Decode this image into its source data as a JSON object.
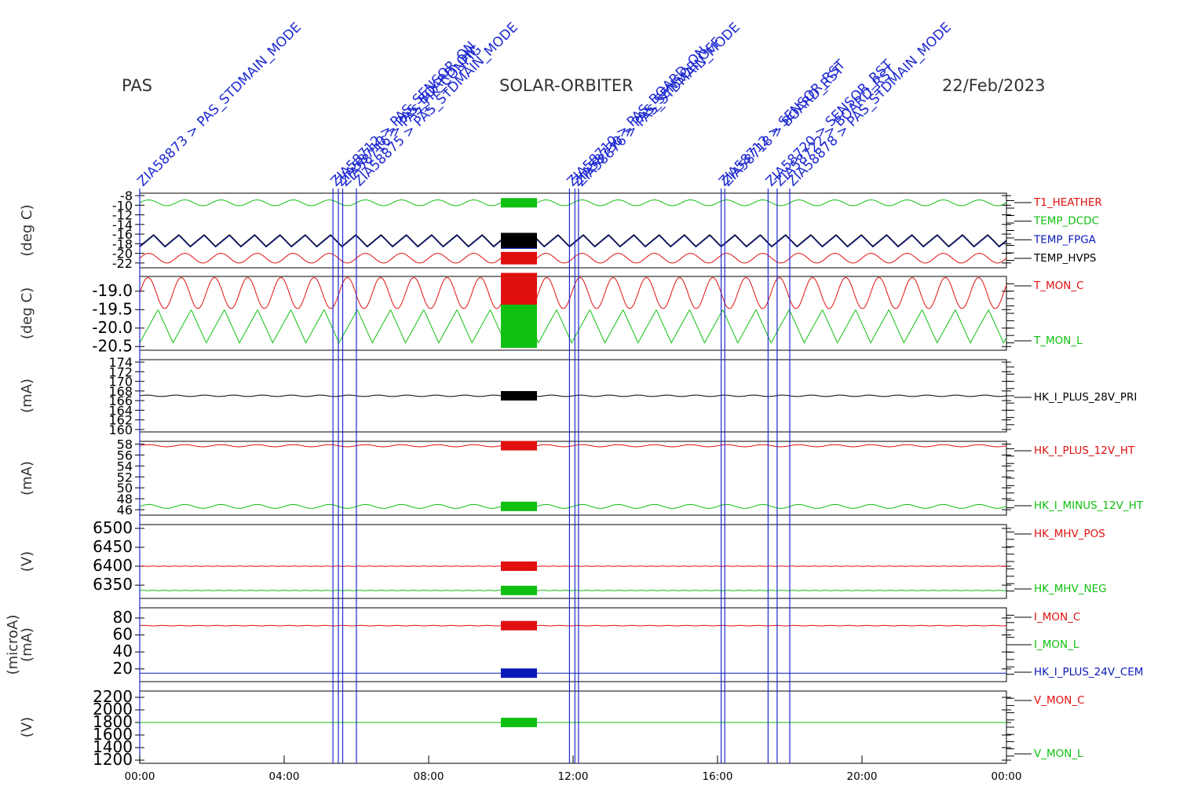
{
  "header": {
    "left": "PAS",
    "center": "SOLAR-ORBITER",
    "right": "22/Feb/2023"
  },
  "colors": {
    "red": "#e01010",
    "green": "#10c010",
    "blue": "#0a1ab8",
    "black": "#000000",
    "cmd": "#1f2ad0"
  },
  "time_axis": {
    "start_hour": 0,
    "end_hour": 24,
    "ticks": [
      {
        "hour": 0,
        "label": "00:00"
      },
      {
        "hour": 4,
        "label": "04:00"
      },
      {
        "hour": 8,
        "label": "08:00"
      },
      {
        "hour": 12,
        "label": "12:00"
      },
      {
        "hour": 16,
        "label": "16:00"
      },
      {
        "hour": 20,
        "label": "20:00"
      },
      {
        "hour": 24,
        "label": "00:00"
      }
    ]
  },
  "commands": [
    {
      "hour": 0.0,
      "label": "ZIA58873 > PAS_STDMAIN_MODE"
    },
    {
      "hour": 5.35,
      "label": "ZIA58712 > PAS_SENSOR_ON"
    },
    {
      "hour": 5.5,
      "label": "ZIA58710 > PAS_BOARD_ON"
    },
    {
      "hour": 5.62,
      "label": "ZIA58716 > PAS_HK_CONFIG"
    },
    {
      "hour": 6.0,
      "label": "ZIA58875 > PAS_STDMAIN_MODE"
    },
    {
      "hour": 11.9,
      "label": "ZIA58710 > PAS_BOARD_ON"
    },
    {
      "hour": 12.05,
      "label": "ZIA58730 > PAS_SENSOR_OFF"
    },
    {
      "hour": 12.15,
      "label": "ZIA58876 > PAS_STDMAIN_MODE"
    },
    {
      "hour": 16.1,
      "label": "ZIA58712 > SENSOR_RST"
    },
    {
      "hour": 16.2,
      "label": "ZIA58718 > BOARD_RST"
    },
    {
      "hour": 17.4,
      "label": "ZIA58720 > SENSOR_RST"
    },
    {
      "hour": 17.65,
      "label": "ZIA58722 > BOARD_RST"
    },
    {
      "hour": 18.0,
      "label": "ZIA58878 > PAS_STDMAIN_MODE"
    }
  ],
  "chart_data": [
    {
      "type": "line",
      "ylabel": "(deg C)",
      "ylim": [
        -23,
        -7.5
      ],
      "yticks": [
        "-8",
        "-10",
        "-12",
        "-14",
        "-16",
        "-18",
        "-20",
        "-22"
      ],
      "series": [
        {
          "name": "T1_HEATHER",
          "color": "#e01010",
          "base": -21.0,
          "amp": 1.0,
          "period": 1.0,
          "shape": "sin"
        },
        {
          "name": "TEMP_DCDC",
          "color": "#10c010",
          "base": -9.5,
          "amp": 0.6,
          "period": 1.0,
          "shape": "sin"
        },
        {
          "name": "TEMP_FPGA",
          "color": "#0a1ab8",
          "base": -17.5,
          "amp": 1.2,
          "period": 0.7,
          "shape": "saw"
        },
        {
          "name": "TEMP_HVPS",
          "color": "#000000",
          "base": -17.3,
          "amp": 1.2,
          "period": 0.7,
          "shape": "saw"
        }
      ]
    },
    {
      "type": "line",
      "ylabel": "(deg C)",
      "ylim": [
        -20.6,
        -18.6
      ],
      "yticks": [
        "-19.0",
        "-19.5",
        "-20.0",
        "-20.5"
      ],
      "series": [
        {
          "name": "T_MON_C",
          "color": "#e01010",
          "base": -19.05,
          "amp": 0.42,
          "period": 0.92,
          "shape": "sin"
        },
        {
          "name": "T_MON_L",
          "color": "#10c010",
          "base": -19.95,
          "amp": 0.45,
          "period": 0.92,
          "shape": "saw"
        }
      ]
    },
    {
      "type": "line",
      "ylabel": "(mA)",
      "ylim": [
        159.5,
        174.5
      ],
      "yticks": [
        "174",
        "172",
        "170",
        "168",
        "166",
        "164",
        "162",
        "160"
      ],
      "series": [
        {
          "name": "HK_I_PLUS_28V_PRI",
          "color": "#000000",
          "base": 167.0,
          "amp": 0.15,
          "period": 0.8,
          "shape": "sin"
        }
      ]
    },
    {
      "type": "line",
      "ylabel": "(mA)",
      "ylim": [
        45,
        58.5
      ],
      "yticks": [
        "58",
        "56",
        "54",
        "52",
        "50",
        "48",
        "46"
      ],
      "series": [
        {
          "name": "HK_I_PLUS_12V_HT",
          "color": "#e01010",
          "base": 57.7,
          "amp": 0.2,
          "period": 1.0,
          "shape": "sin"
        },
        {
          "name": "HK_I_MINUS_12V_HT",
          "color": "#10c010",
          "base": 46.6,
          "amp": 0.35,
          "period": 1.0,
          "shape": "sin"
        }
      ]
    },
    {
      "type": "line",
      "ylabel": "(V)",
      "ylim": [
        6315,
        6510
      ],
      "yticks": [
        "6500",
        "6450",
        "6400",
        "6350"
      ],
      "series": [
        {
          "name": "HK_MHV_POS",
          "color": "#e01010",
          "base": 6400,
          "amp": 0.6,
          "period": 0.3,
          "shape": "sin"
        },
        {
          "name": "HK_MHV_NEG",
          "color": "#10c010",
          "base": 6336,
          "amp": 0.6,
          "period": 0.3,
          "shape": "sin"
        }
      ]
    },
    {
      "type": "line",
      "ylabel": "(mA)",
      "ylabel2": "(microA)",
      "ylim": [
        5,
        92
      ],
      "yticks": [
        "80",
        "60",
        "40",
        "20"
      ],
      "series": [
        {
          "name": "I_MON_C",
          "color": "#e01010",
          "base": 71,
          "amp": 0.3,
          "period": 0.5,
          "shape": "sin"
        },
        {
          "name": "I_MON_L",
          "color": "#10c010",
          "base": null,
          "amp": 0,
          "period": 1,
          "shape": "none"
        },
        {
          "name": "HK_I_PLUS_24V_CEM",
          "color": "#0a1ab8",
          "base": 15,
          "amp": 0.0,
          "period": 1.0,
          "shape": "sin"
        }
      ]
    },
    {
      "type": "line",
      "ylabel": "(V)",
      "ylim": [
        1150,
        2300
      ],
      "yticks": [
        "2200",
        "2000",
        "1800",
        "1600",
        "1400",
        "1200"
      ],
      "series": [
        {
          "name": "V_MON_C",
          "color": "#e01010",
          "base": null,
          "amp": 0,
          "period": 1,
          "shape": "none"
        },
        {
          "name": "V_MON_L",
          "color": "#10c010",
          "base": 1800,
          "amp": 0.0,
          "period": 1.0,
          "shape": "sin"
        }
      ]
    }
  ]
}
